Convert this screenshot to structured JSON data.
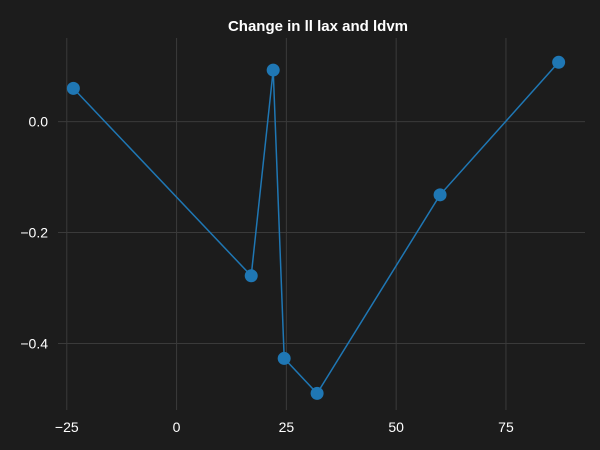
{
  "chart_data": {
    "type": "line",
    "title": "Change in ll lax and ldvm",
    "xlabel": "",
    "ylabel": "",
    "xlim": [
      -27,
      93
    ],
    "ylim": [
      -0.52,
      0.14
    ],
    "x_ticks": [
      -25,
      0,
      25,
      50,
      75
    ],
    "x_tick_labels": [
      "−25",
      "0",
      "25",
      "50",
      "75"
    ],
    "y_ticks": [
      0.0,
      -0.2,
      -0.4
    ],
    "y_tick_labels": [
      "0.0",
      "−0.2",
      "−0.4"
    ],
    "grid": true,
    "legend": "none",
    "series": [
      {
        "color": "#1f77b4",
        "x": [
          -23.5,
          17,
          22,
          24.5,
          32,
          60,
          87
        ],
        "y": [
          0.06,
          -0.278,
          0.093,
          -0.427,
          -0.49,
          -0.132,
          0.107
        ]
      }
    ]
  },
  "colors": {
    "background": "#1c1c1c",
    "grid": "#3a3a3a",
    "text": "#ffffff"
  }
}
